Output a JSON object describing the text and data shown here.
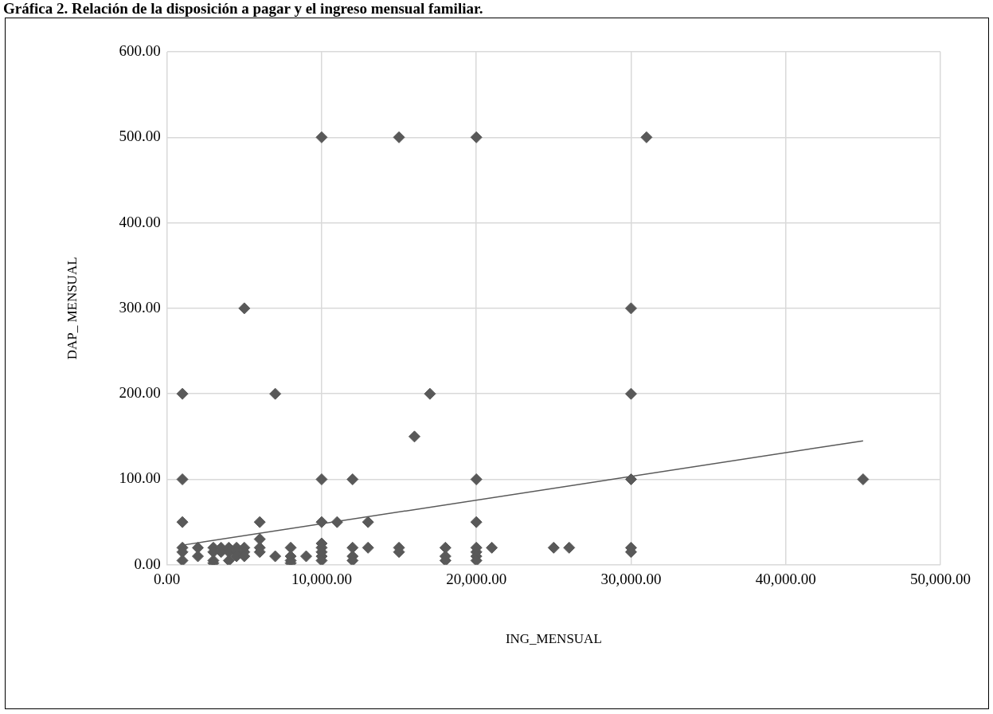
{
  "chart_data": {
    "type": "scatter",
    "title": "Gráfica 2. Relación de la disposición a pagar y el ingreso mensual familiar.",
    "xlabel": "ING_MENSUAL",
    "ylabel": "DAP_ MENSUAL",
    "xlim": [
      0,
      50000
    ],
    "ylim": [
      0,
      600
    ],
    "xticks": [
      {
        "value": 0,
        "label": "0.00"
      },
      {
        "value": 10000,
        "label": "10,000.00"
      },
      {
        "value": 20000,
        "label": "20,000.00"
      },
      {
        "value": 30000,
        "label": "30,000.00"
      },
      {
        "value": 40000,
        "label": "40,000.00"
      },
      {
        "value": 50000,
        "label": "50,000.00"
      }
    ],
    "yticks": [
      {
        "value": 0,
        "label": "0.00"
      },
      {
        "value": 100,
        "label": "100.00"
      },
      {
        "value": 200,
        "label": "200.00"
      },
      {
        "value": 300,
        "label": "300.00"
      },
      {
        "value": 400,
        "label": "400.00"
      },
      {
        "value": 500,
        "label": "500.00"
      },
      {
        "value": 600,
        "label": "600.00"
      }
    ],
    "grid": true,
    "legend": false,
    "marker": "diamond",
    "series": [
      {
        "color": "#595959",
        "x": [
          1000,
          1000,
          1000,
          1000,
          1000,
          1000,
          2000,
          2000,
          3000,
          3000,
          3000,
          3000,
          3500,
          3500,
          4000,
          4000,
          4000,
          4500,
          4500,
          4500,
          5000,
          5000,
          5000,
          5000,
          6000,
          6000,
          6000,
          6000,
          7000,
          7000,
          8000,
          8000,
          8000,
          8000,
          9000,
          10000,
          10000,
          10000,
          10000,
          10000,
          10000,
          10000,
          10000,
          11000,
          12000,
          12000,
          12000,
          12000,
          13000,
          13000,
          15000,
          15000,
          15000,
          16000,
          17000,
          18000,
          18000,
          18000,
          20000,
          20000,
          20000,
          20000,
          20000,
          20000,
          20000,
          21000,
          25000,
          26000,
          30000,
          30000,
          30000,
          30000,
          30000,
          31000,
          45000
        ],
        "values": [
          200,
          100,
          50,
          20,
          15,
          5,
          20,
          10,
          20,
          15,
          5,
          2,
          20,
          15,
          20,
          15,
          5,
          20,
          15,
          10,
          300,
          20,
          15,
          10,
          50,
          30,
          20,
          15,
          200,
          10,
          20,
          10,
          5,
          2,
          10,
          500,
          100,
          50,
          25,
          20,
          15,
          10,
          5,
          50,
          100,
          20,
          10,
          5,
          50,
          20,
          500,
          20,
          15,
          150,
          200,
          20,
          10,
          5,
          500,
          100,
          50,
          20,
          15,
          10,
          5,
          20,
          20,
          20,
          300,
          200,
          100,
          20,
          15,
          500,
          100
        ]
      },
      {
        "type": "line",
        "color": "#595959",
        "marker": "none",
        "x": [
          1000,
          45000
        ],
        "values": [
          23,
          145
        ]
      }
    ]
  }
}
